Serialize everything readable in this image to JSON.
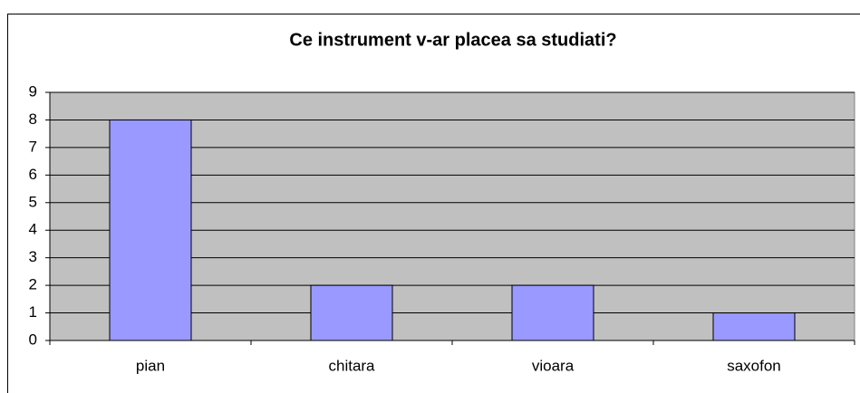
{
  "chart_data": {
    "type": "bar",
    "title": "Ce instrument v-ar placea sa studiati?",
    "categories": [
      "pian",
      "chitara",
      "vioara",
      "saxofon"
    ],
    "values": [
      8,
      2,
      2,
      1
    ],
    "color": "#9999ff",
    "ylim": [
      0,
      9
    ],
    "yticks": [
      0,
      1,
      2,
      3,
      4,
      5,
      6,
      7,
      8,
      9
    ],
    "grid": true
  }
}
